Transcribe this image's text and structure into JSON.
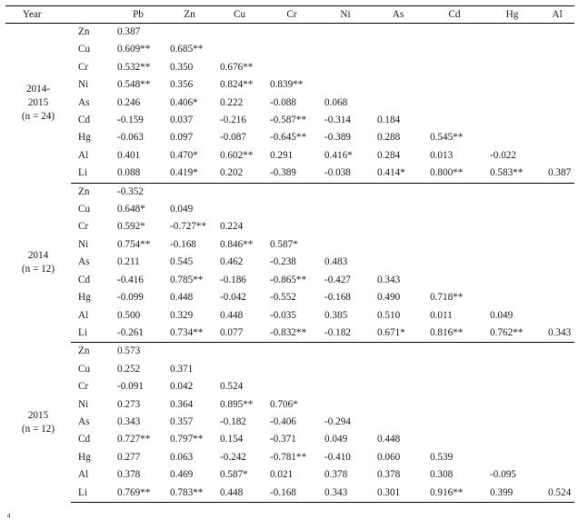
{
  "columns": [
    "Pb",
    "Zn",
    "Cu",
    "Cr",
    "Ni",
    "As",
    "Cd",
    "Hg",
    "Al"
  ],
  "header": {
    "year_label": "Year"
  },
  "groups": [
    {
      "year_lines": [
        "2014-",
        "2015",
        "(n = 24)"
      ],
      "rows": [
        {
          "var": "Zn",
          "values": [
            "0.387",
            "",
            "",
            "",
            "",
            "",
            "",
            "",
            ""
          ]
        },
        {
          "var": "Cu",
          "values": [
            "0.609**",
            "0.685**",
            "",
            "",
            "",
            "",
            "",
            "",
            ""
          ]
        },
        {
          "var": "Cr",
          "values": [
            "0.532**",
            "0.350",
            "0.676**",
            "",
            "",
            "",
            "",
            "",
            ""
          ]
        },
        {
          "var": "Ni",
          "values": [
            "0.548**",
            "0.356",
            "0.824**",
            "0.839**",
            "",
            "",
            "",
            "",
            ""
          ]
        },
        {
          "var": "As",
          "values": [
            "0.246",
            "0.406*",
            "0.222",
            "-0.088",
            "0.068",
            "",
            "",
            "",
            ""
          ]
        },
        {
          "var": "Cd",
          "values": [
            "-0.159",
            "0.037",
            "-0.216",
            "-0.587**",
            "-0.314",
            "0.184",
            "",
            "",
            ""
          ]
        },
        {
          "var": "Hg",
          "values": [
            "-0.063",
            "0.097",
            "-0.087",
            "-0.645**",
            "-0.389",
            "0.288",
            "0.545**",
            "",
            ""
          ]
        },
        {
          "var": "Al",
          "values": [
            "0.401",
            "0.470*",
            "0.602**",
            "0.291",
            "0.416*",
            "0.284",
            "0.013",
            "-0.022",
            ""
          ]
        },
        {
          "var": "Li",
          "values": [
            "0.088",
            "0.419*",
            "0.202",
            "-0.389",
            "-0.038",
            "0.414*",
            "0.800**",
            "0.583**",
            "0.387"
          ]
        }
      ]
    },
    {
      "year_lines": [
        "2014",
        "(n = 12)"
      ],
      "rows": [
        {
          "var": "Zn",
          "values": [
            "-0.352",
            "",
            "",
            "",
            "",
            "",
            "",
            "",
            ""
          ]
        },
        {
          "var": "Cu",
          "values": [
            "0.648*",
            "0.049",
            "",
            "",
            "",
            "",
            "",
            "",
            ""
          ]
        },
        {
          "var": "Cr",
          "values": [
            "0.592*",
            "-0.727**",
            "0.224",
            "",
            "",
            "",
            "",
            "",
            ""
          ]
        },
        {
          "var": "Ni",
          "values": [
            "0.754**",
            "-0.168",
            "0.846**",
            "0.587*",
            "",
            "",
            "",
            "",
            ""
          ]
        },
        {
          "var": "As",
          "values": [
            "0.211",
            "0.545",
            "0.462",
            "-0.238",
            "0.483",
            "",
            "",
            "",
            ""
          ]
        },
        {
          "var": "Cd",
          "values": [
            "-0.416",
            "0.785**",
            "-0.186",
            "-0.865**",
            "-0.427",
            "0.343",
            "",
            "",
            ""
          ]
        },
        {
          "var": "Hg",
          "values": [
            "-0.099",
            "0.448",
            "-0.042",
            "-0.552",
            "-0.168",
            "0.490",
            "0.718**",
            "",
            ""
          ]
        },
        {
          "var": "Al",
          "values": [
            "0.500",
            "0.329",
            "0.448",
            "-0.035",
            "0.385",
            "0.510",
            "0.011",
            "0.049",
            ""
          ]
        },
        {
          "var": "Li",
          "values": [
            "-0.261",
            "0.734**",
            "0.077",
            "-0.832**",
            "-0.182",
            "0.671*",
            "0.816**",
            "0.762**",
            "0.343"
          ]
        }
      ]
    },
    {
      "year_lines": [
        "2015",
        "(n = 12)"
      ],
      "rows": [
        {
          "var": "Zn",
          "values": [
            "0.573",
            "",
            "",
            "",
            "",
            "",
            "",
            "",
            ""
          ]
        },
        {
          "var": "Cu",
          "values": [
            "0.252",
            "0.371",
            "",
            "",
            "",
            "",
            "",
            "",
            ""
          ]
        },
        {
          "var": "Cr",
          "values": [
            "-0.091",
            "0.042",
            "0.524",
            "",
            "",
            "",
            "",
            "",
            ""
          ]
        },
        {
          "var": "Ni",
          "values": [
            "0.273",
            "0.364",
            "0.895**",
            "0.706*",
            "",
            "",
            "",
            "",
            ""
          ]
        },
        {
          "var": "As",
          "values": [
            "0.343",
            "0.357",
            "-0.182",
            "-0.406",
            "-0.294",
            "",
            "",
            "",
            ""
          ]
        },
        {
          "var": "Cd",
          "values": [
            "0.727**",
            "0.797**",
            "0.154",
            "-0.371",
            "0.049",
            "0.448",
            "",
            "",
            ""
          ]
        },
        {
          "var": "Hg",
          "values": [
            "0.277",
            "0.063",
            "-0.242",
            "-0.781**",
            "-0.410",
            "0.060",
            "0.539",
            "",
            ""
          ]
        },
        {
          "var": "Al",
          "values": [
            "0.378",
            "0.469",
            "0.587*",
            "0.021",
            "0.378",
            "0.378",
            "0.308",
            "-0.095",
            ""
          ]
        },
        {
          "var": "Li",
          "values": [
            "0.769**",
            "0.783**",
            "0.448",
            "-0.168",
            "0.343",
            "0.301",
            "0.916**",
            "0.399",
            "0.524"
          ]
        }
      ]
    }
  ],
  "footnote_mark": "a"
}
